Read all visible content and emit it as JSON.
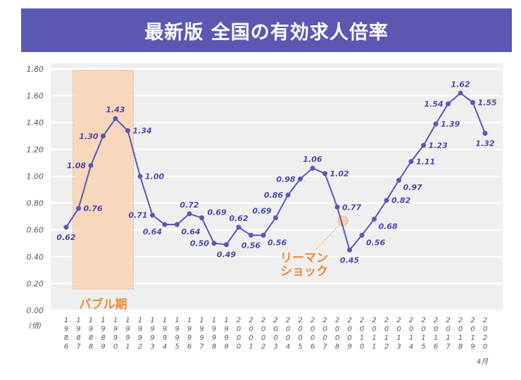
{
  "title": "最新版 全国の有効求人倍率",
  "chart_data": {
    "type": "line",
    "title": "最新版 全国の有効求人倍率",
    "ylabel": "(倍)",
    "ylim": [
      0,
      1.8
    ],
    "yticks": [
      "0.00",
      "0.20",
      "0.40",
      "0.60",
      "0.80",
      "1.00",
      "1.20",
      "1.40",
      "1.60",
      "1.80"
    ],
    "grid": true,
    "x": [
      "1986",
      "1987",
      "1988",
      "1989",
      "1990",
      "1991",
      "1992",
      "1993",
      "1994",
      "1995",
      "1996",
      "1997",
      "1998",
      "1999",
      "2000",
      "2001",
      "2002",
      "2003",
      "2004",
      "2005",
      "2006",
      "2007",
      "2008",
      "2009",
      "2010",
      "2011",
      "2012",
      "2013",
      "2014",
      "2015",
      "2016",
      "2017",
      "2018",
      "2019",
      "2020"
    ],
    "values": [
      0.62,
      0.76,
      1.08,
      1.3,
      1.43,
      1.34,
      1.0,
      0.71,
      0.64,
      0.64,
      0.72,
      0.69,
      0.5,
      0.49,
      0.62,
      0.56,
      0.56,
      0.69,
      0.86,
      0.98,
      1.06,
      1.02,
      0.77,
      0.45,
      0.56,
      0.68,
      0.82,
      0.97,
      1.11,
      1.23,
      1.39,
      1.54,
      1.62,
      1.55,
      1.32
    ],
    "data_labels": [
      "0.62",
      "0.76",
      "1.08",
      "1.30",
      "1.43",
      "1.34",
      "1.00",
      "0.71",
      "0.64",
      "0.64",
      "0.72",
      "0.69",
      "0.50",
      "0.49",
      "0.62",
      "0.56",
      "0.56",
      "0.69",
      "0.86",
      "0.98",
      "1.06",
      "1.02",
      "0.77",
      "0.45",
      "0.56",
      "0.68",
      "0.82",
      "0.97",
      "1.11",
      "1.23",
      "1.39",
      "1.54",
      "1.62",
      "1.55",
      "1.32"
    ],
    "last_x_note": "4月",
    "annotations": [
      {
        "text": "バブル期",
        "x_range": [
          "1987",
          "1991"
        ]
      },
      {
        "text_lines": [
          "リーマン",
          "ショック"
        ],
        "x": "2008"
      }
    ],
    "colors": {
      "line": "#5a57b5",
      "title_bg": "#5b58b2",
      "bubble": "#f8d3b3",
      "annotation": "#ec8a3a",
      "panel": "#efefef"
    }
  }
}
